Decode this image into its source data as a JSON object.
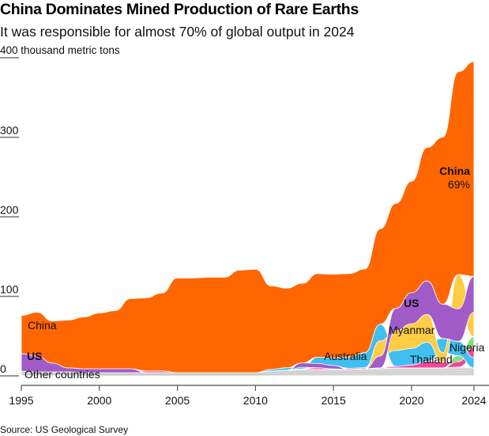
{
  "header": {
    "title": "China Dominates Mined Production of Rare Earths",
    "subtitle": "It was responsible for almost 70% of global output in 2024",
    "unit_label": "400 thousand metric tons"
  },
  "footer": {
    "source": "Source: US Geological Survey"
  },
  "chart_data": {
    "type": "area",
    "subtype": "ranked stacked area (layers reordered by value each year)",
    "title": "China Dominates Mined Production of Rare Earths",
    "subtitle": "It was responsible for almost 70% of global output in 2024",
    "xlabel": "",
    "ylabel": "thousand metric tons",
    "ylim": [
      0,
      400
    ],
    "yticks": [
      0,
      100,
      200,
      300,
      400
    ],
    "ytick_labels": [
      "0",
      "100",
      "200",
      "300",
      "400 thousand metric tons"
    ],
    "xlim": [
      1995,
      2024
    ],
    "xticks": [
      1995,
      2000,
      2005,
      2010,
      2015,
      2020,
      2024
    ],
    "xtick_labels": [
      "1995",
      "2000",
      "2005",
      "2010",
      "2015",
      "2020",
      "2024"
    ],
    "grid": false,
    "x": [
      1995,
      1996,
      1997,
      1998,
      1999,
      2000,
      2001,
      2002,
      2003,
      2004,
      2005,
      2006,
      2007,
      2008,
      2009,
      2010,
      2011,
      2012,
      2013,
      2014,
      2015,
      2016,
      2017,
      2018,
      2019,
      2020,
      2021,
      2022,
      2023,
      2024
    ],
    "series": [
      {
        "name": "China",
        "color": "#ff6600",
        "values": [
          48,
          55,
          53,
          60,
          65,
          70,
          73,
          88,
          92,
          98,
          119,
          119,
          120,
          120,
          129,
          130,
          105,
          100,
          100,
          105,
          105,
          105,
          105,
          120,
          132,
          140,
          168,
          210,
          255,
          270
        ]
      },
      {
        "name": "US",
        "color": "#a05bc8",
        "values": [
          22,
          20,
          11,
          5,
          5,
          5,
          5,
          5,
          0,
          0,
          0,
          0,
          0,
          0,
          0,
          0,
          0,
          0,
          5.5,
          5.4,
          4.1,
          0,
          0,
          15,
          28,
          39,
          42,
          43,
          41,
          45
        ]
      },
      {
        "name": "Australia",
        "color": "#40bff0",
        "values": [
          0,
          0,
          0,
          0,
          0,
          0,
          0,
          0,
          0,
          0,
          0,
          0,
          0,
          0,
          0,
          0,
          2.2,
          3.2,
          2,
          8,
          10,
          14,
          19,
          21,
          20,
          21,
          24,
          18,
          18,
          13
        ]
      },
      {
        "name": "Myanmar",
        "color": "#ffcc44",
        "values": [
          0,
          0,
          0,
          0,
          0,
          0,
          0,
          0,
          0,
          0,
          0,
          0,
          0,
          0,
          0,
          0,
          0,
          0,
          0,
          0,
          0,
          0,
          0,
          19,
          25,
          31,
          35,
          12,
          43,
          31
        ]
      },
      {
        "name": "Thailand",
        "color": "#f0479a",
        "values": [
          0,
          0,
          0,
          0,
          0,
          0,
          0,
          0,
          2.2,
          2.2,
          0,
          0,
          0,
          0,
          0,
          0,
          0,
          0,
          0.8,
          2.1,
          0.8,
          1.6,
          1.3,
          1,
          1.9,
          3.6,
          8.2,
          7.1,
          7.1,
          13
        ]
      },
      {
        "name": "Nigeria",
        "color": "#7ee07e",
        "values": [
          0,
          0,
          0,
          0,
          0,
          0,
          0,
          0,
          0,
          0,
          0,
          0,
          0,
          0,
          0,
          0,
          0,
          0,
          0,
          0,
          0,
          0,
          0,
          0,
          0,
          0,
          0,
          0,
          7.3,
          13
        ]
      },
      {
        "name": "Other countries",
        "color": "#dcdcdc",
        "values": [
          6,
          5,
          5,
          5,
          4,
          4,
          4,
          4,
          4,
          4,
          4,
          4,
          4,
          4,
          4,
          4,
          6,
          7,
          8,
          8,
          8,
          8,
          9,
          9,
          10,
          10,
          10,
          10,
          11,
          10
        ]
      }
    ],
    "annotations": [
      {
        "text": "China",
        "note": "left label"
      },
      {
        "text": "US",
        "note": "left label"
      },
      {
        "text": "Other countries",
        "note": "left label"
      },
      {
        "text": "Australia"
      },
      {
        "text": "Myanmar"
      },
      {
        "text": "US",
        "note": "right label"
      },
      {
        "text": "Thailand"
      },
      {
        "text": "Nigeria"
      },
      {
        "text": "China 69%",
        "note": "share in 2024"
      }
    ],
    "labels": {
      "china_left": "China",
      "us_left": "US",
      "other_left": "Other countries",
      "australia": "Australia",
      "myanmar": "Myanmar",
      "us_right": "US",
      "thailand": "Thailand",
      "nigeria": "Nigeria",
      "china_right": "China",
      "china_share": "69%"
    }
  }
}
